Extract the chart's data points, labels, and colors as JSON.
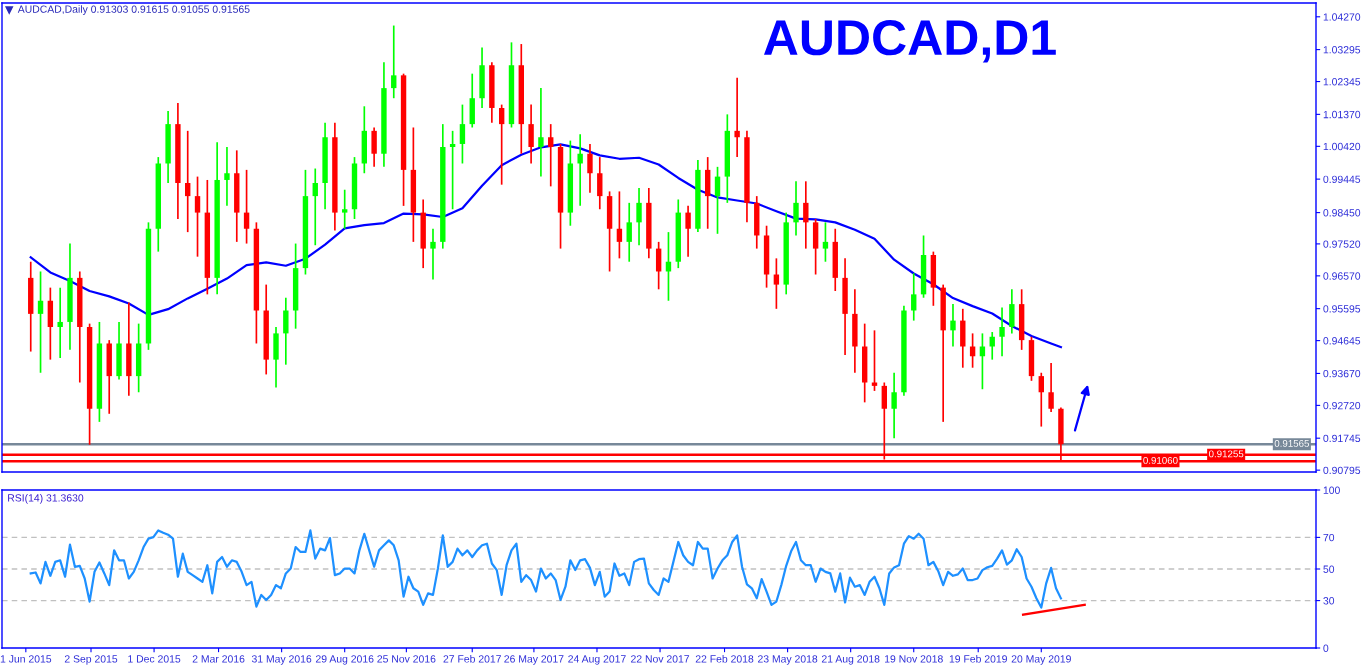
{
  "chart_data": [
    {
      "type": "candlestick",
      "title": "AUDCAD,D1",
      "annotations": [
        "AUDCAD,Daily 0.91303 0.91615 0.91055 0.91565"
      ],
      "x": [
        "2015-06-08",
        "2015-06-22",
        "2015-07-06",
        "2015-07-20",
        "2015-08-03",
        "2015-08-17",
        "2015-08-31",
        "2015-09-14",
        "2015-09-28",
        "2015-10-12",
        "2015-10-26",
        "2015-11-09",
        "2015-11-23",
        "2015-12-07",
        "2015-12-21",
        "2016-01-04",
        "2016-01-18",
        "2016-02-01",
        "2016-02-15",
        "2016-02-29",
        "2016-03-14",
        "2016-03-28",
        "2016-04-11",
        "2016-04-25",
        "2016-05-09",
        "2016-05-23",
        "2016-06-06",
        "2016-06-20",
        "2016-07-04",
        "2016-07-18",
        "2016-08-01",
        "2016-08-15",
        "2016-08-29",
        "2016-09-12",
        "2016-09-26",
        "2016-10-10",
        "2016-10-24",
        "2016-11-07",
        "2016-11-21",
        "2016-12-05",
        "2016-12-19",
        "2017-01-02",
        "2017-01-16",
        "2017-01-30",
        "2017-02-13",
        "2017-02-27",
        "2017-03-13",
        "2017-03-27",
        "2017-04-10",
        "2017-04-24",
        "2017-05-08",
        "2017-05-22",
        "2017-06-05",
        "2017-06-19",
        "2017-07-03",
        "2017-07-17",
        "2017-07-31",
        "2017-08-14",
        "2017-08-28",
        "2017-09-11",
        "2017-09-25",
        "2017-10-09",
        "2017-10-23",
        "2017-11-06",
        "2017-11-20",
        "2017-12-04",
        "2017-12-18",
        "2018-01-01",
        "2018-01-15",
        "2018-01-29",
        "2018-02-12",
        "2018-02-26",
        "2018-03-12",
        "2018-03-26",
        "2018-04-09",
        "2018-04-23",
        "2018-05-07",
        "2018-05-21",
        "2018-06-04",
        "2018-06-18",
        "2018-07-02",
        "2018-07-16",
        "2018-07-30",
        "2018-08-13",
        "2018-08-27",
        "2018-09-10",
        "2018-09-24",
        "2018-10-08",
        "2018-10-22",
        "2018-11-05",
        "2018-11-19",
        "2018-12-03",
        "2018-12-17",
        "2018-12-31",
        "2019-01-14",
        "2019-01-28",
        "2019-02-11",
        "2019-02-25",
        "2019-03-11",
        "2019-03-25",
        "2019-04-08",
        "2019-04-22",
        "2019-05-06",
        "2019-05-20",
        "2019-06-03",
        "2019-06-17"
      ],
      "ohlc": [
        [
          0.9651,
          0.9699,
          0.9432,
          0.9544
        ],
        [
          0.9544,
          0.967,
          0.9369,
          0.9583
        ],
        [
          0.9583,
          0.9622,
          0.9408,
          0.9505
        ],
        [
          0.9505,
          0.9622,
          0.9413,
          0.952
        ],
        [
          0.952,
          0.9753,
          0.9437,
          0.9651
        ],
        [
          0.9651,
          0.967,
          0.934,
          0.9505
        ],
        [
          0.9505,
          0.9515,
          0.9155,
          0.9262
        ],
        [
          0.9262,
          0.952,
          0.9223,
          0.9456
        ],
        [
          0.9456,
          0.9466,
          0.9247,
          0.9359
        ],
        [
          0.9359,
          0.952,
          0.9349,
          0.9456
        ],
        [
          0.9456,
          0.9578,
          0.9301,
          0.9359
        ],
        [
          0.9359,
          0.9515,
          0.9311,
          0.9456
        ],
        [
          0.9456,
          0.9816,
          0.9437,
          0.9797
        ],
        [
          0.9797,
          1.001,
          0.9729,
          0.9991
        ],
        [
          0.9991,
          1.0147,
          0.9933,
          1.0108
        ],
        [
          1.0108,
          1.0171,
          0.9826,
          0.9933
        ],
        [
          0.9933,
          1.0088,
          0.9787,
          0.9894
        ],
        [
          0.9894,
          0.9952,
          0.9714,
          0.9845
        ],
        [
          0.9845,
          0.9942,
          0.9602,
          0.9651
        ],
        [
          0.9651,
          1.0054,
          0.9602,
          0.9942
        ],
        [
          0.9942,
          1.004,
          0.9865,
          0.9962
        ],
        [
          0.9962,
          1.003,
          0.9758,
          0.9845
        ],
        [
          0.9845,
          0.9972,
          0.9753,
          0.9797
        ],
        [
          0.9797,
          0.9816,
          0.9456,
          0.9554
        ],
        [
          0.9554,
          0.9631,
          0.9364,
          0.9408
        ],
        [
          0.9408,
          0.9505,
          0.9325,
          0.9486
        ],
        [
          0.9486,
          0.9592,
          0.9393,
          0.9554
        ],
        [
          0.9554,
          0.9753,
          0.95,
          0.968
        ],
        [
          0.968,
          0.9972,
          0.9661,
          0.9894
        ],
        [
          0.9894,
          0.9976,
          0.9748,
          0.9933
        ],
        [
          0.9933,
          1.0112,
          0.9855,
          1.0069
        ],
        [
          1.0069,
          1.0112,
          0.9792,
          0.9845
        ],
        [
          0.9845,
          0.9913,
          0.9797,
          0.9855
        ],
        [
          0.9855,
          1.001,
          0.9826,
          0.9991
        ],
        [
          0.9991,
          1.0161,
          0.9962,
          1.0088
        ],
        [
          1.0088,
          1.0098,
          0.9981,
          1.002
        ],
        [
          1.002,
          1.0292,
          0.9981,
          1.0215
        ],
        [
          1.0215,
          1.0401,
          1.0185,
          1.0253
        ],
        [
          1.0253,
          1.0258,
          0.9865,
          0.9972
        ],
        [
          0.9972,
          1.0098,
          0.9758,
          0.9845
        ],
        [
          0.9845,
          0.9884,
          0.968,
          0.9738
        ],
        [
          0.9738,
          0.9797,
          0.9646,
          0.9758
        ],
        [
          0.9758,
          1.0108,
          0.9738,
          1.004
        ],
        [
          1.004,
          1.0088,
          0.9855,
          1.0049
        ],
        [
          1.0049,
          1.0166,
          0.9991,
          1.0108
        ],
        [
          1.0108,
          1.0258,
          1.0098,
          1.0185
        ],
        [
          1.0185,
          1.0336,
          1.0156,
          1.0283
        ],
        [
          1.0283,
          1.0292,
          1.0112,
          1.0156
        ],
        [
          1.0156,
          1.0166,
          0.9928,
          1.0108
        ],
        [
          1.0108,
          1.0351,
          1.0098,
          1.0283
        ],
        [
          1.0283,
          1.0346,
          1.002,
          1.0108
        ],
        [
          1.0108,
          1.0166,
          0.9991,
          1.004
        ],
        [
          1.004,
          1.0215,
          0.9952,
          1.0069
        ],
        [
          1.0069,
          1.0108,
          0.9923,
          1.004
        ],
        [
          1.004,
          1.0049,
          0.9738,
          0.9845
        ],
        [
          0.9845,
          1.0059,
          0.9806,
          0.9991
        ],
        [
          0.9991,
          1.0078,
          0.9865,
          1.002
        ],
        [
          1.002,
          1.0049,
          0.9904,
          0.9962
        ],
        [
          0.9962,
          1.001,
          0.9855,
          0.9894
        ],
        [
          0.9894,
          0.9908,
          0.967,
          0.9797
        ],
        [
          0.9797,
          0.9908,
          0.9709,
          0.9758
        ],
        [
          0.9758,
          0.9874,
          0.9699,
          0.9816
        ],
        [
          0.9816,
          0.9918,
          0.9748,
          0.9874
        ],
        [
          0.9874,
          0.9918,
          0.9709,
          0.9738
        ],
        [
          0.9738,
          0.9758,
          0.9617,
          0.967
        ],
        [
          0.967,
          0.9787,
          0.9583,
          0.9699
        ],
        [
          0.9699,
          0.9884,
          0.968,
          0.9845
        ],
        [
          0.9845,
          0.9865,
          0.9714,
          0.9797
        ],
        [
          0.9797,
          1.0001,
          0.9787,
          0.9972
        ],
        [
          0.9972,
          1.001,
          0.9797,
          0.9894
        ],
        [
          0.9894,
          0.9981,
          0.9782,
          0.9952
        ],
        [
          0.9952,
          1.0137,
          0.9874,
          1.0088
        ],
        [
          1.0088,
          1.0246,
          1.001,
          1.0069
        ],
        [
          1.0069,
          1.0088,
          0.9816,
          0.9874
        ],
        [
          0.9874,
          0.9894,
          0.9738,
          0.9777
        ],
        [
          0.9777,
          0.9806,
          0.9622,
          0.9661
        ],
        [
          0.9661,
          0.9709,
          0.9559,
          0.9631
        ],
        [
          0.9631,
          0.9845,
          0.9602,
          0.9816
        ],
        [
          0.9816,
          0.9938,
          0.9777,
          0.9874
        ],
        [
          0.9874,
          0.9938,
          0.9738,
          0.9816
        ],
        [
          0.9816,
          0.9826,
          0.9661,
          0.9738
        ],
        [
          0.9738,
          0.9816,
          0.9699,
          0.9758
        ],
        [
          0.9758,
          0.9797,
          0.9612,
          0.9651
        ],
        [
          0.9651,
          0.9709,
          0.9422,
          0.9544
        ],
        [
          0.9544,
          0.9617,
          0.9369,
          0.9447
        ],
        [
          0.9447,
          0.9515,
          0.9281,
          0.934
        ],
        [
          0.934,
          0.9495,
          0.9315,
          0.933
        ],
        [
          0.933,
          0.934,
          0.9111,
          0.9262
        ],
        [
          0.9262,
          0.9369,
          0.9174,
          0.9311
        ],
        [
          0.9311,
          0.9568,
          0.9301,
          0.9554
        ],
        [
          0.9554,
          0.9665,
          0.9524,
          0.9602
        ],
        [
          0.9602,
          0.9777,
          0.9592,
          0.9719
        ],
        [
          0.9719,
          0.9729,
          0.9568,
          0.9622
        ],
        [
          0.9622,
          0.9631,
          0.9223,
          0.9495
        ],
        [
          0.9495,
          0.9573,
          0.9447,
          0.9524
        ],
        [
          0.9524,
          0.9559,
          0.9384,
          0.9447
        ],
        [
          0.9447,
          0.9486,
          0.9384,
          0.9418
        ],
        [
          0.9418,
          0.9486,
          0.932,
          0.9447
        ],
        [
          0.9447,
          0.949,
          0.9408,
          0.9476
        ],
        [
          0.9476,
          0.9563,
          0.9418,
          0.9505
        ],
        [
          0.9505,
          0.9617,
          0.9486,
          0.9573
        ],
        [
          0.9573,
          0.9617,
          0.9437,
          0.9466
        ],
        [
          0.9466,
          0.9476,
          0.9345,
          0.9359
        ],
        [
          0.9359,
          0.9369,
          0.9209,
          0.9311
        ],
        [
          0.9311,
          0.9398,
          0.9252,
          0.9262
        ],
        [
          0.9262,
          0.9266,
          0.91055,
          0.91565
        ]
      ],
      "colors": [
        "#ff0000",
        "#00ff00",
        "#ff0000",
        "#00ff00",
        "#00ff00",
        "#ff0000",
        "#ff0000",
        "#00ff00",
        "#ff0000",
        "#00ff00",
        "#ff0000",
        "#00ff00",
        "#00ff00",
        "#00ff00",
        "#00ff00",
        "#ff0000",
        "#ff0000",
        "#ff0000",
        "#ff0000",
        "#00ff00",
        "#00ff00",
        "#ff0000",
        "#ff0000",
        "#ff0000",
        "#ff0000",
        "#00ff00",
        "#00ff00",
        "#00ff00",
        "#00ff00",
        "#00ff00",
        "#00ff00",
        "#ff0000",
        "#00ff00",
        "#00ff00",
        "#00ff00",
        "#ff0000",
        "#00ff00",
        "#00ff00",
        "#ff0000",
        "#ff0000",
        "#ff0000",
        "#00ff00",
        "#00ff00",
        "#00ff00",
        "#00ff00",
        "#00ff00",
        "#00ff00",
        "#ff0000",
        "#ff0000",
        "#00ff00",
        "#ff0000",
        "#ff0000",
        "#00ff00",
        "#ff0000",
        "#ff0000",
        "#00ff00",
        "#00ff00",
        "#ff0000",
        "#ff0000",
        "#ff0000",
        "#ff0000",
        "#00ff00",
        "#00ff00",
        "#ff0000",
        "#ff0000",
        "#00ff00",
        "#00ff00",
        "#ff0000",
        "#00ff00",
        "#ff0000",
        "#00ff00",
        "#00ff00",
        "#ff0000",
        "#ff0000",
        "#ff0000",
        "#ff0000",
        "#ff0000",
        "#00ff00",
        "#00ff00",
        "#ff0000",
        "#ff0000",
        "#00ff00",
        "#ff0000",
        "#ff0000",
        "#ff0000",
        "#ff0000",
        "#ff0000",
        "#ff0000",
        "#00ff00",
        "#00ff00",
        "#00ff00",
        "#00ff00",
        "#ff0000",
        "#ff0000",
        "#00ff00",
        "#ff0000",
        "#ff0000",
        "#00ff00",
        "#00ff00",
        "#00ff00",
        "#00ff00",
        "#ff0000",
        "#ff0000",
        "#ff0000",
        "#ff0000",
        "#ff0000"
      ],
      "series": [
        {
          "type": "line",
          "color": "#0000ff",
          "x": [
            "2015-06-08",
            "2015-07-06",
            "2015-08-03",
            "2015-08-31",
            "2015-09-28",
            "2015-10-26",
            "2015-11-23",
            "2015-12-21",
            "2016-01-18",
            "2016-02-15",
            "2016-03-14",
            "2016-04-11",
            "2016-05-09",
            "2016-06-06",
            "2016-07-04",
            "2016-08-01",
            "2016-08-29",
            "2016-09-26",
            "2016-10-24",
            "2016-11-21",
            "2016-12-19",
            "2017-01-16",
            "2017-02-13",
            "2017-03-13",
            "2017-04-10",
            "2017-05-08",
            "2017-06-05",
            "2017-07-03",
            "2017-07-31",
            "2017-08-28",
            "2017-09-25",
            "2017-10-23",
            "2017-11-20",
            "2017-12-18",
            "2018-01-15",
            "2018-02-12",
            "2018-03-12",
            "2018-04-09",
            "2018-05-07",
            "2018-06-04",
            "2018-07-02",
            "2018-07-30",
            "2018-08-27",
            "2018-09-24",
            "2018-10-22",
            "2018-11-19",
            "2018-12-17",
            "2019-01-14",
            "2019-02-11",
            "2019-03-11",
            "2019-04-08",
            "2019-05-06",
            "2019-06-03",
            "2019-06-17"
          ],
          "values": [
            0.9712,
            0.9667,
            0.9642,
            0.9612,
            0.9596,
            0.9575,
            0.9541,
            0.9558,
            0.959,
            0.9619,
            0.9649,
            0.9689,
            0.9697,
            0.9687,
            0.9708,
            0.975,
            0.9798,
            0.9808,
            0.9814,
            0.9842,
            0.984,
            0.9832,
            0.9858,
            0.9925,
            0.9986,
            1.0017,
            1.0039,
            1.0048,
            1.0036,
            1.0015,
            1.0005,
            1.0008,
            0.9988,
            0.9948,
            0.9913,
            0.989,
            0.9881,
            0.9872,
            0.9849,
            0.9827,
            0.9825,
            0.9816,
            0.9794,
            0.9767,
            0.9705,
            0.9664,
            0.9632,
            0.9591,
            0.9567,
            0.9545,
            0.9508,
            0.9478,
            0.9456,
            0.9445
          ]
        }
      ],
      "xlim": [
        "2015-04-28",
        "2020-06-15"
      ],
      "ylim": [
        0.9074,
        1.0468
      ],
      "yticks": [
        {
          "value": 0.90795,
          "label": "0.90795"
        },
        {
          "value": 0.91745,
          "label": "0.91745"
        },
        {
          "value": 0.9272,
          "label": "0.92720"
        },
        {
          "value": 0.9367,
          "label": "0.93670"
        },
        {
          "value": 0.94645,
          "label": "0.94645"
        },
        {
          "value": 0.95595,
          "label": "0.95595"
        },
        {
          "value": 0.9657,
          "label": "0.96570"
        },
        {
          "value": 0.9752,
          "label": "0.97520"
        },
        {
          "value": 0.9845,
          "label": "0.98450"
        },
        {
          "value": 0.99445,
          "label": "0.99445"
        },
        {
          "value": 1.0042,
          "label": "1.00420"
        },
        {
          "value": 1.0137,
          "label": "1.01370"
        },
        {
          "value": 1.02345,
          "label": "1.02345"
        },
        {
          "value": 1.03295,
          "label": "1.03295"
        },
        {
          "value": 1.0427,
          "label": "1.04270"
        }
      ],
      "tick_labels": "y",
      "ref_lines": [
        {
          "axis": "y",
          "value": 0.91565,
          "label": "0.91565",
          "color": "#778899"
        },
        {
          "axis": "y",
          "value": 0.91255,
          "label": "0.91255",
          "color": "#ff0000"
        },
        {
          "axis": "y",
          "value": 0.9106,
          "label": "0.91060",
          "color": "#ff0000"
        }
      ]
    },
    {
      "type": "line",
      "title": "RSI(14) 31.3630",
      "series": [
        {
          "type": "line",
          "color": "#1e90ff",
          "x": [
            "2015-06-08",
            "2015-06-15",
            "2015-06-22",
            "2015-06-29",
            "2015-07-06",
            "2015-07-13",
            "2015-07-20",
            "2015-07-27",
            "2015-08-03",
            "2015-08-10",
            "2015-08-17",
            "2015-08-24",
            "2015-08-31",
            "2015-09-07",
            "2015-09-14",
            "2015-09-21",
            "2015-09-28",
            "2015-10-05",
            "2015-10-12",
            "2015-10-19",
            "2015-10-26",
            "2015-11-02",
            "2015-11-09",
            "2015-11-16",
            "2015-11-23",
            "2015-11-30",
            "2015-12-07",
            "2015-12-14",
            "2015-12-21",
            "2015-12-28",
            "2016-01-04",
            "2016-01-11",
            "2016-01-18",
            "2016-01-25",
            "2016-02-01",
            "2016-02-08",
            "2016-02-15",
            "2016-02-22",
            "2016-02-29",
            "2016-03-07",
            "2016-03-14",
            "2016-03-21",
            "2016-03-28",
            "2016-04-04",
            "2016-04-11",
            "2016-04-18",
            "2016-04-25",
            "2016-05-02",
            "2016-05-09",
            "2016-05-16",
            "2016-05-23",
            "2016-05-30",
            "2016-06-06",
            "2016-06-13",
            "2016-06-20",
            "2016-06-27",
            "2016-07-04",
            "2016-07-11",
            "2016-07-18",
            "2016-07-25",
            "2016-08-01",
            "2016-08-08",
            "2016-08-15",
            "2016-08-22",
            "2016-08-29",
            "2016-09-05",
            "2016-09-12",
            "2016-09-19",
            "2016-09-26",
            "2016-10-03",
            "2016-10-10",
            "2016-10-17",
            "2016-10-24",
            "2016-10-31",
            "2016-11-07",
            "2016-11-14",
            "2016-11-21",
            "2016-11-28",
            "2016-12-05",
            "2016-12-12",
            "2016-12-19",
            "2016-12-26",
            "2017-01-02",
            "2017-01-09",
            "2017-01-16",
            "2017-01-23",
            "2017-01-30",
            "2017-02-06",
            "2017-02-13",
            "2017-02-20",
            "2017-02-27",
            "2017-03-06",
            "2017-03-13",
            "2017-03-20",
            "2017-03-27",
            "2017-04-03",
            "2017-04-10",
            "2017-04-17",
            "2017-04-24",
            "2017-05-01",
            "2017-05-08",
            "2017-05-15",
            "2017-05-22",
            "2017-05-29",
            "2017-06-05",
            "2017-06-12",
            "2017-06-19",
            "2017-06-26",
            "2017-07-03",
            "2017-07-10",
            "2017-07-17",
            "2017-07-24",
            "2017-07-31",
            "2017-08-07",
            "2017-08-14",
            "2017-08-21",
            "2017-08-28",
            "2017-09-04",
            "2017-09-11",
            "2017-09-18",
            "2017-09-25",
            "2017-10-02",
            "2017-10-09",
            "2017-10-16",
            "2017-10-23",
            "2017-10-30",
            "2017-11-06",
            "2017-11-13",
            "2017-11-20",
            "2017-11-27",
            "2017-12-04",
            "2017-12-11",
            "2017-12-18",
            "2017-12-25",
            "2018-01-01",
            "2018-01-08",
            "2018-01-15",
            "2018-01-22",
            "2018-01-29",
            "2018-02-05",
            "2018-02-12",
            "2018-02-19",
            "2018-02-26",
            "2018-03-05",
            "2018-03-12",
            "2018-03-19",
            "2018-03-26",
            "2018-04-02",
            "2018-04-09",
            "2018-04-16",
            "2018-04-23",
            "2018-04-30",
            "2018-05-07",
            "2018-05-14",
            "2018-05-21",
            "2018-05-28",
            "2018-06-04",
            "2018-06-11",
            "2018-06-18",
            "2018-06-25",
            "2018-07-02",
            "2018-07-09",
            "2018-07-16",
            "2018-07-23",
            "2018-07-30",
            "2018-08-06",
            "2018-08-13",
            "2018-08-20",
            "2018-08-27",
            "2018-09-03",
            "2018-09-10",
            "2018-09-17",
            "2018-09-24",
            "2018-10-01",
            "2018-10-08",
            "2018-10-15",
            "2018-10-22",
            "2018-10-29",
            "2018-11-05",
            "2018-11-12",
            "2018-11-19",
            "2018-11-26",
            "2018-12-03",
            "2018-12-10",
            "2018-12-17",
            "2018-12-24",
            "2018-12-31",
            "2019-01-07",
            "2019-01-14",
            "2019-01-21",
            "2019-01-28",
            "2019-02-04",
            "2019-02-11",
            "2019-02-18",
            "2019-02-25",
            "2019-03-04",
            "2019-03-11",
            "2019-03-18",
            "2019-03-25",
            "2019-04-01",
            "2019-04-08",
            "2019-04-15",
            "2019-04-22",
            "2019-04-29",
            "2019-05-06",
            "2019-05-13",
            "2019-05-20",
            "2019-05-27",
            "2019-06-03",
            "2019-06-10",
            "2019-06-17"
          ],
          "values": [
            47.2,
            47.8,
            40.9,
            54.5,
            45.7,
            54.5,
            55.5,
            45.1,
            65.4,
            51.4,
            52,
            44,
            29.4,
            48.2,
            54.1,
            47.2,
            39.8,
            61.8,
            55.5,
            55.5,
            44,
            48.2,
            55.5,
            63.9,
            69.2,
            70.2,
            74.4,
            72.9,
            71.7,
            69.2,
            45.1,
            59.7,
            48.2,
            46.1,
            44,
            41.9,
            52.4,
            34.6,
            54.5,
            57.6,
            51.4,
            55.5,
            54.5,
            48.2,
            39.8,
            41.9,
            26.2,
            33.6,
            30.4,
            33.6,
            39.8,
            37.8,
            47.2,
            50.3,
            63.9,
            60.8,
            60.8,
            74.4,
            56.6,
            62.9,
            61.8,
            69.6,
            46.1,
            47.2,
            50.3,
            50.3,
            47.2,
            61.8,
            72.3,
            61.8,
            51.4,
            61.8,
            65,
            68.1,
            65,
            55.5,
            32.5,
            45.1,
            37.8,
            35.7,
            27.3,
            34.6,
            33.6,
            50.3,
            71.3,
            51.4,
            54.5,
            62.9,
            58.7,
            61.8,
            57.6,
            61.8,
            65,
            66,
            53.5,
            49.3,
            33.6,
            52.4,
            61.8,
            66,
            41.9,
            46.1,
            43,
            35.7,
            50.3,
            44,
            47.2,
            43,
            30.4,
            38.8,
            55.5,
            49.3,
            55.5,
            56.2,
            50.7,
            39.8,
            48.2,
            32.5,
            35.7,
            53.5,
            45.7,
            47.2,
            39.8,
            54.5,
            56.2,
            56.6,
            40.9,
            36.7,
            33.6,
            44,
            41.9,
            54.5,
            67.1,
            58.7,
            54.5,
            52.4,
            67.1,
            62.9,
            62.9,
            44,
            50.3,
            55.5,
            58.7,
            67.1,
            71.3,
            51.4,
            40.3,
            37.8,
            31.5,
            43.6,
            35.7,
            27.3,
            29.4,
            39.8,
            52,
            61.2,
            67.1,
            55.5,
            52.4,
            52.4,
            41.9,
            50.3,
            48.2,
            47.2,
            35.7,
            47.2,
            28.8,
            44.5,
            38.8,
            39.8,
            33.6,
            41.9,
            45.1,
            37.8,
            27.3,
            47.2,
            51,
            52.4,
            66,
            70.8,
            69.2,
            72.3,
            69.2,
            52.4,
            54.5,
            48.6,
            39.8,
            48.2,
            45.7,
            46.6,
            50.3,
            43,
            43,
            44,
            49.3,
            51.1,
            52,
            56.6,
            61.8,
            52.8,
            55.5,
            62.5,
            57.6,
            44,
            38.8,
            31.5,
            25.6,
            40.9,
            50.7,
            37.8,
            31.4
          ]
        },
        {
          "type": "line",
          "color": "#ff0000",
          "x": [
            "2019-04-24",
            "2019-07-21"
          ],
          "values": [
            21.1,
            27.3
          ]
        }
      ],
      "xlim": [
        "2015-04-28",
        "2020-06-15"
      ],
      "ylim": [
        0,
        100
      ],
      "yticks": [
        0,
        30,
        50,
        70,
        100
      ],
      "xticks": [
        {
          "value": "2015-06-01",
          "label": "1 Jun 2015"
        },
        {
          "value": "2015-09-02",
          "label": "2 Sep 2015"
        },
        {
          "value": "2015-12-01",
          "label": "1 Dec 2015"
        },
        {
          "value": "2016-03-02",
          "label": "2 Mar 2016"
        },
        {
          "value": "2016-05-31",
          "label": "31 May 2016"
        },
        {
          "value": "2016-08-29",
          "label": "29 Aug 2016"
        },
        {
          "value": "2016-11-25",
          "label": "25 Nov 2016"
        },
        {
          "value": "2017-02-27",
          "label": "27 Feb 2017"
        },
        {
          "value": "2017-05-26",
          "label": "26 May 2017"
        },
        {
          "value": "2017-08-24",
          "label": "24 Aug 2017"
        },
        {
          "value": "2017-11-22",
          "label": "22 Nov 2017"
        },
        {
          "value": "2018-02-22",
          "label": "22 Feb 2018"
        },
        {
          "value": "2018-05-23",
          "label": "23 May 2018"
        },
        {
          "value": "2018-08-21",
          "label": "21 Aug 2018"
        },
        {
          "value": "2018-11-19",
          "label": "19 Nov 2018"
        },
        {
          "value": "2019-02-19",
          "label": "19 Feb 2019"
        },
        {
          "value": "2019-05-20",
          "label": "20 May 2019"
        }
      ],
      "ref_lines": [
        {
          "axis": "y",
          "value": 70,
          "color": "#c0c0c0",
          "line_style": "dashed"
        },
        {
          "axis": "y",
          "value": 50,
          "color": "#c0c0c0",
          "line_style": "dashed"
        },
        {
          "axis": "y",
          "value": 30,
          "color": "#c0c0c0",
          "line_style": "dashed"
        }
      ]
    }
  ]
}
